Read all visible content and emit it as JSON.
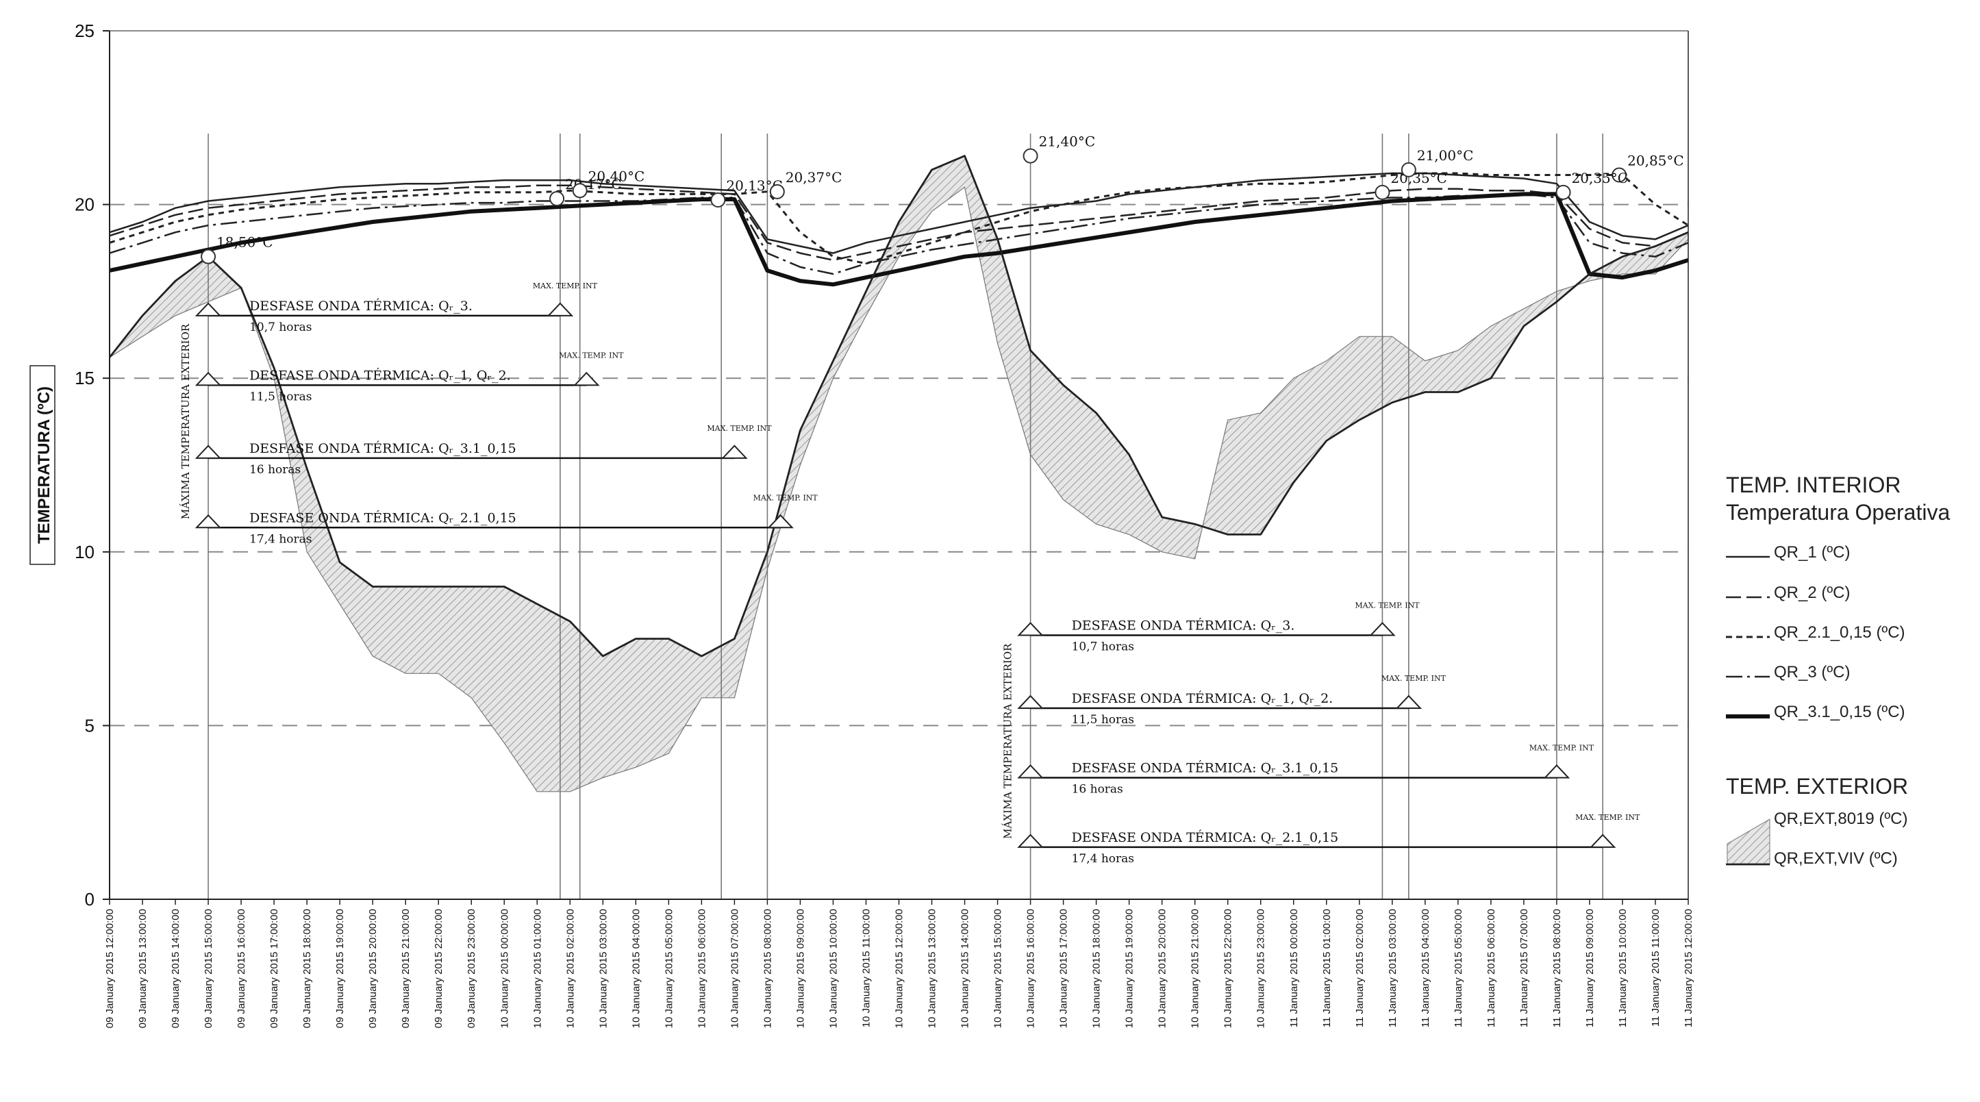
{
  "chart_data": {
    "type": "line",
    "ylabel": "TEMPERATURA (ºC)",
    "ylim": [
      0,
      25
    ],
    "yticks": [
      "0",
      "5",
      "10",
      "15",
      "20",
      "25"
    ],
    "x_labels": [
      "09 January 2015 12:00:00",
      "09 January 2015 13:00:00",
      "09 January 2015 14:00:00",
      "09 January 2015 15:00:00",
      "09 January 2015 16:00:00",
      "09 January 2015 17:00:00",
      "09 January 2015 18:00:00",
      "09 January 2015 19:00:00",
      "09 January 2015 20:00:00",
      "09 January 2015 21:00:00",
      "09 January 2015 22:00:00",
      "09 January 2015 23:00:00",
      "10 January 2015 00:00:00",
      "10 January 2015 01:00:00",
      "10 January 2015 02:00:00",
      "10 January 2015 03:00:00",
      "10 January 2015 04:00:00",
      "10 January 2015 05:00:00",
      "10 January 2015 06:00:00",
      "10 January 2015 07:00:00",
      "10 January 2015 08:00:00",
      "10 January 2015 09:00:00",
      "10 January 2015 10:00:00",
      "10 January 2015 11:00:00",
      "10 January 2015 12:00:00",
      "10 January 2015 13:00:00",
      "10 January 2015 14:00:00",
      "10 January 2015 15:00:00",
      "10 January 2015 16:00:00",
      "10 January 2015 17:00:00",
      "10 January 2015 18:00:00",
      "10 January 2015 19:00:00",
      "10 January 2015 20:00:00",
      "10 January 2015 21:00:00",
      "10 January 2015 22:00:00",
      "10 January 2015 23:00:00",
      "11 January 2015 00:00:00",
      "11 January 2015 01:00:00",
      "11 January 2015 02:00:00",
      "11 January 2015 03:00:00",
      "11 January 2015 04:00:00",
      "11 January 2015 05:00:00",
      "11 January 2015 06:00:00",
      "11 January 2015 07:00:00",
      "11 January 2015 08:00:00",
      "11 January 2015 09:00:00",
      "11 January 2015 10:00:00",
      "11 January 2015 11:00:00",
      "11 January 2015 12:00:00"
    ],
    "x": [
      0,
      1,
      2,
      3,
      4,
      5,
      6,
      7,
      8,
      9,
      10,
      11,
      12,
      13,
      14,
      15,
      16,
      17,
      18,
      19,
      20,
      21,
      22,
      23,
      24,
      25,
      26,
      27,
      28,
      29,
      30,
      31,
      32,
      33,
      34,
      35,
      36,
      37,
      38,
      39,
      40,
      41,
      42,
      43,
      44,
      45,
      46,
      47,
      48
    ],
    "series": [
      {
        "name": "QR_1 (ºC)",
        "style": "solid",
        "values": [
          19.2,
          19.5,
          19.9,
          20.1,
          20.2,
          20.3,
          20.4,
          20.5,
          20.55,
          20.6,
          20.6,
          20.65,
          20.7,
          20.7,
          20.7,
          20.6,
          20.55,
          20.5,
          20.45,
          20.4,
          19.0,
          18.8,
          18.6,
          18.9,
          19.1,
          19.3,
          19.5,
          19.7,
          19.9,
          20.0,
          20.1,
          20.3,
          20.4,
          20.5,
          20.6,
          20.7,
          20.75,
          20.8,
          20.85,
          20.9,
          20.9,
          20.85,
          20.8,
          20.75,
          20.6,
          19.5,
          19.1,
          19.0,
          19.4
        ]
      },
      {
        "name": "QR_2 (ºC)",
        "style": "dashed",
        "values": [
          19.1,
          19.4,
          19.7,
          19.9,
          20.0,
          20.1,
          20.2,
          20.3,
          20.35,
          20.4,
          20.45,
          20.5,
          20.5,
          20.55,
          20.55,
          20.5,
          20.45,
          20.4,
          20.35,
          20.3,
          18.9,
          18.6,
          18.4,
          18.6,
          18.8,
          19.0,
          19.2,
          19.3,
          19.4,
          19.5,
          19.6,
          19.7,
          19.8,
          19.9,
          20.0,
          20.1,
          20.15,
          20.2,
          20.3,
          20.4,
          20.45,
          20.45,
          20.4,
          20.4,
          20.3,
          19.3,
          18.9,
          18.8,
          19.2
        ]
      },
      {
        "name": "QR_2.1_0,15 (ºC)",
        "style": "short-dashed",
        "values": [
          18.9,
          19.2,
          19.5,
          19.7,
          19.85,
          19.95,
          20.05,
          20.15,
          20.2,
          20.25,
          20.3,
          20.35,
          20.35,
          20.35,
          20.4,
          20.35,
          20.3,
          20.3,
          20.3,
          20.3,
          20.37,
          19.2,
          18.5,
          18.3,
          18.6,
          18.9,
          19.2,
          19.5,
          19.8,
          20.0,
          20.2,
          20.35,
          20.45,
          20.5,
          20.55,
          20.6,
          20.6,
          20.65,
          20.75,
          20.85,
          20.9,
          20.9,
          20.85,
          20.85,
          20.85,
          20.85,
          20.85,
          20.0,
          19.4
        ]
      },
      {
        "name": "QR_3 (ºC)",
        "style": "dash-dot",
        "values": [
          18.6,
          18.9,
          19.2,
          19.4,
          19.5,
          19.6,
          19.7,
          19.8,
          19.9,
          19.95,
          20.0,
          20.05,
          20.05,
          20.1,
          20.1,
          20.1,
          20.1,
          20.15,
          20.2,
          20.2,
          18.6,
          18.2,
          18.0,
          18.3,
          18.5,
          18.7,
          18.85,
          19.0,
          19.15,
          19.3,
          19.45,
          19.6,
          19.7,
          19.8,
          19.9,
          20.0,
          20.05,
          20.1,
          20.15,
          20.2,
          20.2,
          20.25,
          20.25,
          20.3,
          20.2,
          18.9,
          18.6,
          18.5,
          18.9
        ]
      },
      {
        "name": "QR_3.1_0,15 (ºC)",
        "style": "thick",
        "values": [
          18.1,
          18.3,
          18.5,
          18.7,
          18.9,
          19.05,
          19.2,
          19.35,
          19.5,
          19.6,
          19.7,
          19.8,
          19.85,
          19.9,
          19.95,
          20.0,
          20.05,
          20.1,
          20.15,
          20.15,
          18.1,
          17.8,
          17.7,
          17.9,
          18.1,
          18.3,
          18.5,
          18.6,
          18.75,
          18.9,
          19.05,
          19.2,
          19.35,
          19.5,
          19.6,
          19.7,
          19.8,
          19.9,
          20.0,
          20.1,
          20.15,
          20.2,
          20.25,
          20.3,
          20.3,
          18.0,
          17.9,
          18.1,
          18.4
        ]
      },
      {
        "name": "QR,EXT,VIV (ºC)",
        "style": "solid-ext",
        "values": [
          15.6,
          16.8,
          17.8,
          18.5,
          17.6,
          15.3,
          12.4,
          9.7,
          9.0,
          9.0,
          9.0,
          9.0,
          9.0,
          8.5,
          8.0,
          7.0,
          7.5,
          7.5,
          7.0,
          7.5,
          10.0,
          13.5,
          15.5,
          17.5,
          19.5,
          21.0,
          21.4,
          19.0,
          15.8,
          14.8,
          14.0,
          12.8,
          11.0,
          10.8,
          10.5,
          10.5,
          12.0,
          13.2,
          13.8,
          14.3,
          14.6,
          14.6,
          15.0,
          16.5,
          17.2,
          18.0,
          18.5,
          18.8,
          19.2
        ]
      },
      {
        "name": "QR,EXT,8019 (ºC)",
        "style": "fill",
        "values": [
          15.6,
          16.2,
          16.8,
          17.2,
          17.6,
          15.0,
          10.0,
          8.5,
          7.0,
          6.5,
          6.5,
          5.8,
          4.5,
          3.1,
          3.1,
          3.5,
          3.8,
          4.2,
          5.8,
          5.8,
          9.5,
          12.5,
          15.0,
          16.8,
          18.5,
          19.8,
          20.5,
          16.0,
          12.8,
          11.5,
          10.8,
          10.5,
          10.0,
          9.8,
          13.8,
          14.0,
          15.0,
          15.5,
          16.2,
          16.2,
          15.5,
          15.8,
          16.5,
          17.0,
          17.5,
          17.8,
          18.0,
          18.0,
          19.0
        ]
      }
    ],
    "annotations": [
      {
        "label": "18,50°C",
        "x": 3,
        "y": 18.5
      },
      {
        "label": "20,17°C",
        "x": 13.6,
        "y": 20.17
      },
      {
        "label": "20,40°C",
        "x": 14.3,
        "y": 20.4
      },
      {
        "label": "20,13°C",
        "x": 18.5,
        "y": 20.13
      },
      {
        "label": "20,37°C",
        "x": 20.3,
        "y": 20.37
      },
      {
        "label": "21,40°C",
        "x": 28,
        "y": 21.4
      },
      {
        "label": "20,35°C",
        "x": 38.7,
        "y": 20.35
      },
      {
        "label": "21,00°C",
        "x": 39.5,
        "y": 21.0
      },
      {
        "label": "20,85°C",
        "x": 45.9,
        "y": 20.85
      },
      {
        "label": "20,35°C",
        "x": 44.2,
        "y": 20.35
      }
    ],
    "groups": [
      {
        "side_label": "MÁXIMA TEMPERATURA EXTERIOR",
        "start_x": 3,
        "rows": [
          {
            "title": "DESFASE ONDA TÉRMICA: Qᵣ_3.",
            "duration": "10,7 horas",
            "marker": "MAX. TEMP. INT",
            "end_x": 13.7,
            "y": 16.8
          },
          {
            "title": "DESFASE ONDA TÉRMICA: Qᵣ_1, Qᵣ_2.",
            "duration": "11,5 horas",
            "marker": "MAX. TEMP. INT",
            "end_x": 14.5,
            "y": 14.8
          },
          {
            "title": "DESFASE ONDA TÉRMICA: Qᵣ_3.1_0,15",
            "duration": "16 horas",
            "marker": "MAX. TEMP. INT",
            "end_x": 19.0,
            "y": 12.7
          },
          {
            "title": "DESFASE ONDA TÉRMICA: Qᵣ_2.1_0,15",
            "duration": "17,4 horas",
            "marker": "MAX. TEMP. INT",
            "end_x": 20.4,
            "y": 10.7
          }
        ]
      },
      {
        "side_label": "MÁXIMA TEMPERATURA EXTERIOR",
        "start_x": 28,
        "rows": [
          {
            "title": "DESFASE ONDA TÉRMICA: Qᵣ_3.",
            "duration": "10,7 horas",
            "marker": "MAX. TEMP. INT",
            "end_x": 38.7,
            "y": 7.6
          },
          {
            "title": "DESFASE ONDA TÉRMICA: Qᵣ_1, Qᵣ_2.",
            "duration": "11,5 horas",
            "marker": "MAX. TEMP. INT",
            "end_x": 39.5,
            "y": 5.5
          },
          {
            "title": "DESFASE ONDA TÉRMICA: Qᵣ_3.1_0,15",
            "duration": "16 horas",
            "marker": "MAX. TEMP. INT",
            "end_x": 44.0,
            "y": 3.5
          },
          {
            "title": "DESFASE ONDA TÉRMICA: Qᵣ_2.1_0,15",
            "duration": "17,4 horas",
            "marker": "MAX. TEMP. INT",
            "end_x": 45.4,
            "y": 1.5
          }
        ]
      }
    ],
    "vlines": [
      3,
      13.7,
      14.3,
      18.6,
      20.0,
      28,
      38.7,
      39.5,
      44.0,
      45.4
    ],
    "grid": "dashed horizontal at 5-unit ticks",
    "legend_position": "right"
  },
  "legend": {
    "interior_title": "TEMP. INTERIOR",
    "interior_subtitle": "Temperatura Operativa",
    "interior_items": [
      "QR_1 (ºC)",
      "QR_2 (ºC)",
      "QR_2.1_0,15 (ºC)",
      "QR_3 (ºC)",
      "QR_3.1_0,15 (ºC)"
    ],
    "exterior_title": "TEMP. EXTERIOR",
    "exterior_items": [
      "QR,EXT,8019 (ºC)",
      "QR,EXT,VIV (ºC)"
    ]
  }
}
